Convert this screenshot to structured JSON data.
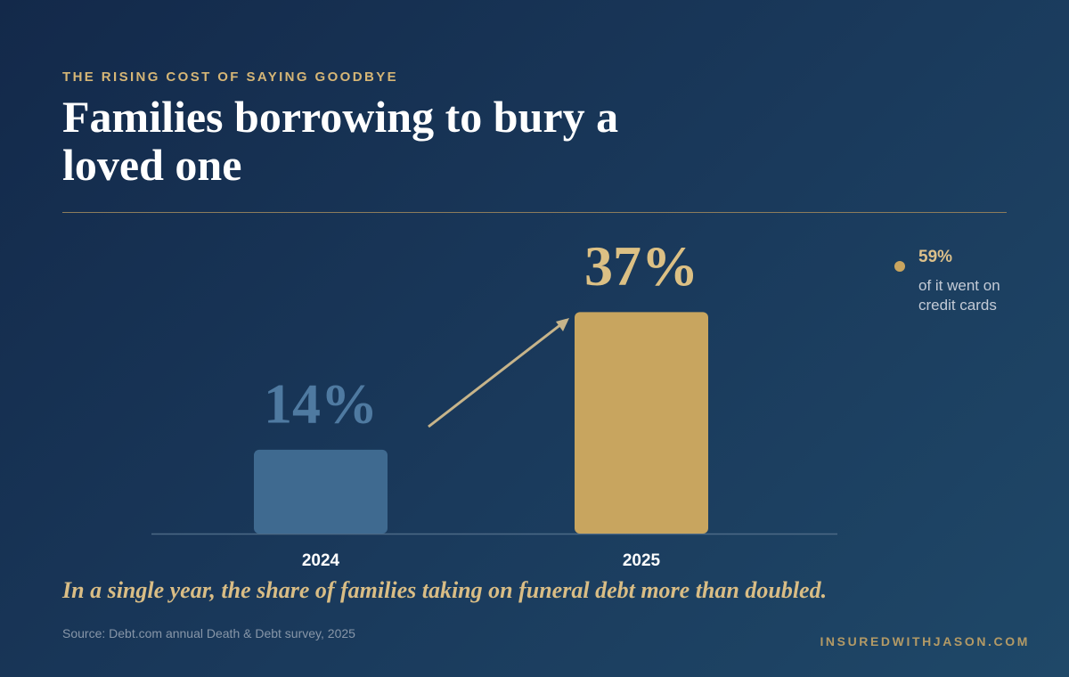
{
  "eyebrow": "THE RISING COST OF SAYING GOODBYE",
  "title": "Families borrowing to bury a loved one",
  "callout": {
    "value": "59%",
    "text": "of it went on credit cards"
  },
  "caption": "In a single year, the share of families taking on funeral debt more than doubled.",
  "source": "Source: Debt.com annual Death & Debt survey, 2025",
  "brand": "INSUREDWITHJASON.COM",
  "chart_data": {
    "type": "bar",
    "categories": [
      "2024",
      "2025"
    ],
    "values": [
      14,
      37
    ],
    "value_labels": [
      "14%",
      "37%"
    ],
    "colors": [
      "#3f6a90",
      "#c8a55f"
    ],
    "label_colors": [
      "#4f7aa1",
      "#dcc084"
    ]
  }
}
